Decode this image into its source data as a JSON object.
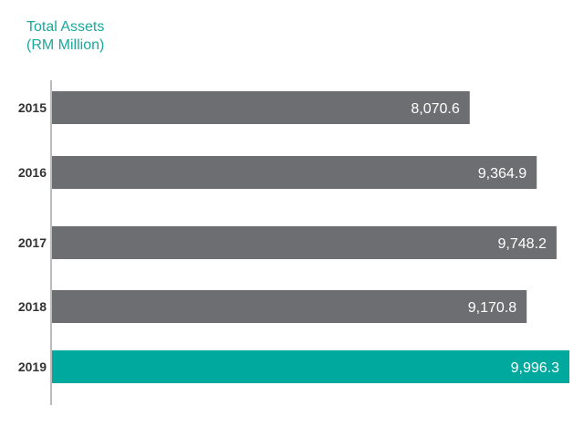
{
  "chart_data": {
    "type": "bar",
    "orientation": "horizontal",
    "title_lines": [
      "Total Assets",
      "(RM Million)"
    ],
    "categories": [
      "2015",
      "2016",
      "2017",
      "2018",
      "2019"
    ],
    "values": [
      8070.6,
      9364.9,
      9748.2,
      9170.8,
      9996.3
    ],
    "value_labels": [
      "8,070.6",
      "9,364.9",
      "9,748.2",
      "9,170.8",
      "9,996.3"
    ],
    "xlim": [
      0,
      9996.3
    ],
    "grid": false,
    "legend": "none",
    "colors": {
      "default_bar": "#6d6e71",
      "highlight_bar": "#00a99d",
      "title": "#1aa89c",
      "axis": "#bbbbbb",
      "category_text": "#333333",
      "data_label_text": "#ffffff"
    },
    "highlight_category": "2019"
  }
}
